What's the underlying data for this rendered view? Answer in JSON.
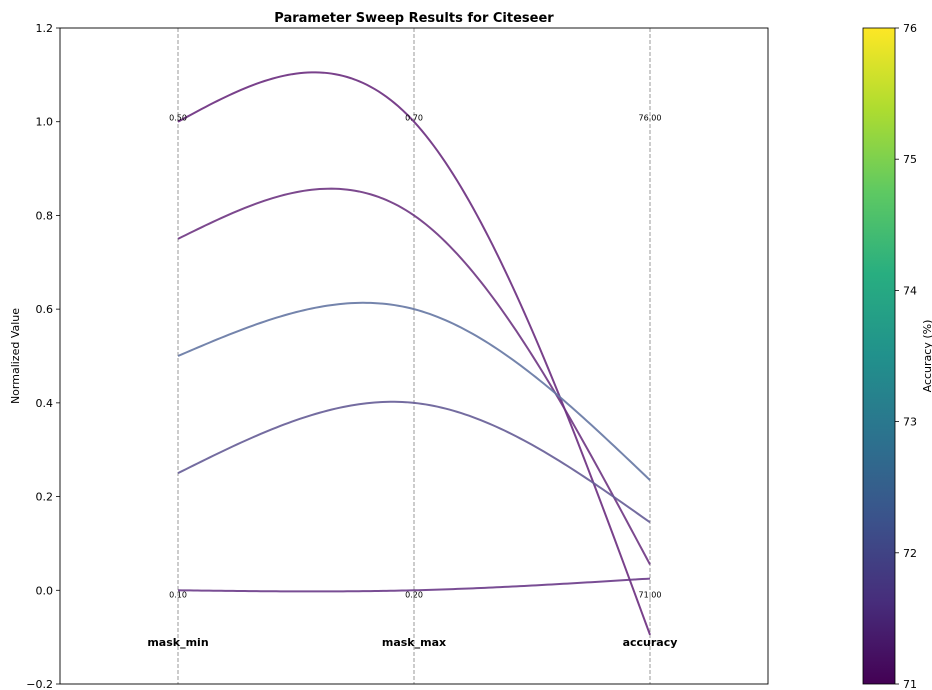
{
  "chart_data": {
    "type": "line",
    "title": "Parameter Sweep Results for Citeseer",
    "ylabel": "Normalized Value",
    "xlabel": "",
    "ylim": [
      -0.2,
      1.2
    ],
    "y_ticks": [
      "−0.2",
      "0.0",
      "0.2",
      "0.4",
      "0.6",
      "0.8",
      "1.0",
      "1.2"
    ],
    "axes": [
      {
        "name": "mask_min",
        "min_label": "0.10",
        "max_label": "0.50"
      },
      {
        "name": "mask_max",
        "min_label": "0.20",
        "max_label": "0.70"
      },
      {
        "name": "accuracy",
        "min_label": "71.00",
        "max_label": "76.00"
      }
    ],
    "series": [
      {
        "values": [
          1.0,
          1.0,
          -0.095
        ],
        "color": "#6a2c7e"
      },
      {
        "values": [
          0.75,
          0.8,
          0.055
        ],
        "color": "#6e3582"
      },
      {
        "values": [
          0.5,
          0.6,
          0.235
        ],
        "color": "#6577a3"
      },
      {
        "values": [
          0.25,
          0.4,
          0.145
        ],
        "color": "#655c96"
      },
      {
        "values": [
          0.0,
          0.0,
          0.025
        ],
        "color": "#6a3a88"
      }
    ],
    "grid": false,
    "colorbar": {
      "label": "Accuracy (%)",
      "min": 71,
      "max": 76,
      "ticks": [
        "71",
        "72",
        "73",
        "74",
        "75",
        "76"
      ],
      "colormap": "viridis"
    }
  }
}
